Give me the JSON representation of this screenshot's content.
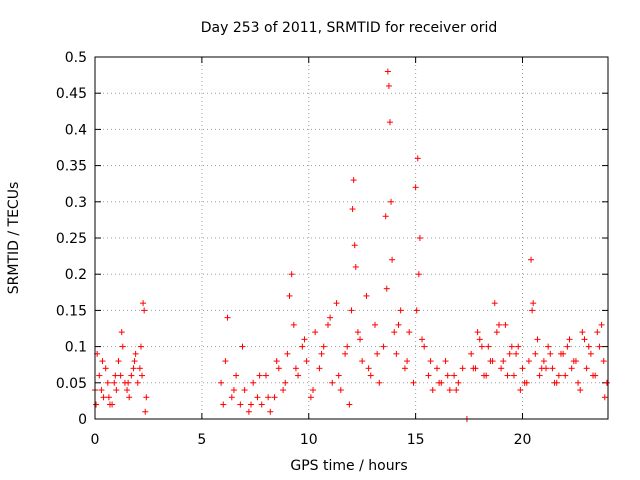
{
  "chart_data": {
    "type": "scatter",
    "title": "Day 253 of 2011, SRMTID for receiver orid",
    "xlabel": "GPS time / hours",
    "ylabel": "SRMTID / TECUs",
    "xlim": [
      0,
      24
    ],
    "ylim": [
      0,
      0.5
    ],
    "grid": true,
    "x_ticks": [
      0,
      5,
      10,
      15,
      20
    ],
    "x_tick_labels": [
      "0",
      "5",
      "10",
      "15",
      "20"
    ],
    "y_ticks": [
      0,
      0.05,
      0.1,
      0.15,
      0.2,
      0.25,
      0.3,
      0.35,
      0.4,
      0.45,
      0.5
    ],
    "y_tick_labels": [
      "0",
      "0.05",
      "0.1",
      "0.15",
      "0.2",
      "0.25",
      "0.3",
      "0.35",
      "0.4",
      "0.45",
      "0.5"
    ],
    "marker": "+",
    "color": "#ff0000",
    "series": [
      {
        "name": "SRMTID",
        "x": [
          0.0,
          0.2,
          0.4,
          0.6,
          0.8,
          1.0,
          1.2,
          1.4,
          1.6,
          1.8,
          2.0,
          2.2,
          2.3,
          2.4,
          0.1,
          0.3,
          0.5,
          0.7,
          0.9,
          1.1,
          1.3,
          1.5,
          1.7,
          1.9,
          2.1,
          2.25,
          0.05,
          0.35,
          0.65,
          0.95,
          1.25,
          1.55,
          1.85,
          2.15,
          2.35,
          5.9,
          6.0,
          6.2,
          6.4,
          6.6,
          6.8,
          7.0,
          7.2,
          7.4,
          7.6,
          7.8,
          8.0,
          8.2,
          8.4,
          8.6,
          8.8,
          9.0,
          9.2,
          9.3,
          9.5,
          9.7,
          9.9,
          10.1,
          10.3,
          10.5,
          10.7,
          10.9,
          11.1,
          11.3,
          11.5,
          11.7,
          11.9,
          12.0,
          12.1,
          12.2,
          12.3,
          12.5,
          12.7,
          12.9,
          13.1,
          13.3,
          13.5,
          13.6,
          13.7,
          13.8,
          13.9,
          14.0,
          14.1,
          14.3,
          14.5,
          14.7,
          14.9,
          15.0,
          15.1,
          15.2,
          15.4,
          15.6,
          15.8,
          16.0,
          16.2,
          16.4,
          16.6,
          16.8,
          17.0,
          17.2,
          6.1,
          6.5,
          6.9,
          7.3,
          7.7,
          8.1,
          8.5,
          8.9,
          9.1,
          9.4,
          9.8,
          10.2,
          10.6,
          11.0,
          11.4,
          11.8,
          12.05,
          12.15,
          12.4,
          12.8,
          13.2,
          13.65,
          13.75,
          13.85,
          14.2,
          14.6,
          15.05,
          15.15,
          15.3,
          15.7,
          16.1,
          16.5,
          16.9,
          17.4,
          17.6,
          17.8,
          18.0,
          18.2,
          18.4,
          18.6,
          18.8,
          19.0,
          19.2,
          19.4,
          19.6,
          19.8,
          20.0,
          20.2,
          20.4,
          20.5,
          20.6,
          20.8,
          21.0,
          21.2,
          21.4,
          21.6,
          21.8,
          22.0,
          22.2,
          22.4,
          22.6,
          22.8,
          23.0,
          23.2,
          23.4,
          23.6,
          23.8,
          23.95,
          17.7,
          18.1,
          18.5,
          18.9,
          19.3,
          19.7,
          20.1,
          20.45,
          20.9,
          21.3,
          21.7,
          22.1,
          22.5,
          22.9,
          23.3,
          23.7,
          17.9,
          18.3,
          18.7,
          19.1,
          19.5,
          19.9,
          20.3,
          20.7,
          21.1,
          21.5,
          21.9,
          22.3,
          22.7,
          23.1,
          23.5,
          23.85
        ],
        "y": [
          0.04,
          0.06,
          0.03,
          0.05,
          0.02,
          0.04,
          0.06,
          0.05,
          0.03,
          0.07,
          0.05,
          0.06,
          0.15,
          0.03,
          0.09,
          0.04,
          0.07,
          0.02,
          0.05,
          0.08,
          0.1,
          0.04,
          0.06,
          0.09,
          0.07,
          0.16,
          0.02,
          0.08,
          0.03,
          0.06,
          0.12,
          0.05,
          0.08,
          0.1,
          0.01,
          0.05,
          0.02,
          0.14,
          0.03,
          0.06,
          0.02,
          0.04,
          0.01,
          0.05,
          0.03,
          0.02,
          0.06,
          0.01,
          0.03,
          0.07,
          0.04,
          0.09,
          0.2,
          0.13,
          0.06,
          0.1,
          0.08,
          0.03,
          0.12,
          0.07,
          0.1,
          0.13,
          0.05,
          0.16,
          0.04,
          0.09,
          0.02,
          0.15,
          0.33,
          0.21,
          0.12,
          0.08,
          0.17,
          0.06,
          0.13,
          0.05,
          0.1,
          0.28,
          0.48,
          0.41,
          0.22,
          0.12,
          0.09,
          0.15,
          0.07,
          0.12,
          0.05,
          0.32,
          0.36,
          0.25,
          0.1,
          0.06,
          0.04,
          0.07,
          0.05,
          0.08,
          0.04,
          0.06,
          0.05,
          0.07,
          0.08,
          0.04,
          0.1,
          0.02,
          0.06,
          0.03,
          0.08,
          0.05,
          0.17,
          0.07,
          0.11,
          0.04,
          0.09,
          0.14,
          0.06,
          0.1,
          0.29,
          0.24,
          0.11,
          0.07,
          0.09,
          0.18,
          0.46,
          0.3,
          0.13,
          0.08,
          0.15,
          0.2,
          0.11,
          0.08,
          0.05,
          0.06,
          0.04,
          0.0,
          0.09,
          0.07,
          0.11,
          0.06,
          0.1,
          0.08,
          0.12,
          0.07,
          0.13,
          0.09,
          0.06,
          0.1,
          0.07,
          0.05,
          0.22,
          0.16,
          0.09,
          0.06,
          0.08,
          0.1,
          0.07,
          0.05,
          0.09,
          0.06,
          0.11,
          0.08,
          0.05,
          0.12,
          0.07,
          0.09,
          0.06,
          0.1,
          0.08,
          0.05,
          0.07,
          0.1,
          0.08,
          0.13,
          0.06,
          0.09,
          0.05,
          0.15,
          0.07,
          0.09,
          0.06,
          0.1,
          0.08,
          0.11,
          0.06,
          0.13,
          0.12,
          0.06,
          0.16,
          0.08,
          0.1,
          0.04,
          0.08,
          0.11,
          0.07,
          0.05,
          0.09,
          0.07,
          0.04,
          0.1,
          0.12,
          0.03
        ]
      }
    ]
  }
}
